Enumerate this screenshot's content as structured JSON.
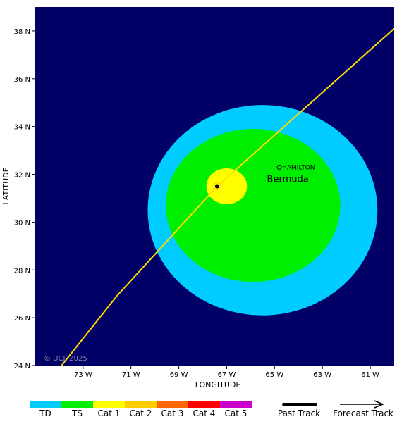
{
  "map": {
    "background_color": "#000066",
    "x_axis_label": "LONGITUDE",
    "y_axis_label": "LATITUDE",
    "lon_range": [
      -75,
      -60
    ],
    "lat_range": [
      24,
      39
    ],
    "lon_ticks": [
      {
        "value": -73,
        "label": "73 W"
      },
      {
        "value": -71,
        "label": "71 W"
      },
      {
        "value": -69,
        "label": "69 W"
      },
      {
        "value": -67,
        "label": "67 W"
      },
      {
        "value": -65,
        "label": "65 W"
      },
      {
        "value": -63,
        "label": "63 W"
      },
      {
        "value": -61,
        "label": "61 W"
      }
    ],
    "lat_ticks": [
      {
        "value": 24,
        "label": "24 N"
      },
      {
        "value": 26,
        "label": "26 N"
      },
      {
        "value": 28,
        "label": "28 N"
      },
      {
        "value": 30,
        "label": "30 N"
      },
      {
        "value": 32,
        "label": "32 N"
      },
      {
        "value": 34,
        "label": "34 N"
      },
      {
        "value": 36,
        "label": "36 N"
      },
      {
        "value": 38,
        "label": "38 N"
      }
    ],
    "wind_fields": [
      {
        "category": "TD",
        "color": "#00ccff",
        "center_lon": -65.5,
        "center_lat": 30.5,
        "radius_lon": 4.8,
        "radius_lat": 4.4
      },
      {
        "category": "TS",
        "color": "#00ee00",
        "center_lon": -65.9,
        "center_lat": 30.7,
        "radius_lon": 3.65,
        "radius_lat": 3.2
      },
      {
        "category": "Cat 1",
        "color": "#ffff00",
        "center_lon": -67.0,
        "center_lat": 31.5,
        "radius_lon": 0.85,
        "radius_lat": 0.75
      }
    ],
    "storm_center": {
      "lon": -67.4,
      "lat": 31.5
    },
    "track": {
      "color": "#ffdd00",
      "points": [
        {
          "lon": -73.9,
          "lat": 24.0
        },
        {
          "lon": -71.6,
          "lat": 26.9
        },
        {
          "lon": -67.4,
          "lat": 31.5
        },
        {
          "lon": -60.0,
          "lat": 38.1
        }
      ]
    },
    "places": [
      {
        "name": "HAMILTON",
        "lon": -64.8,
        "lat": 32.3
      }
    ],
    "region_labels": [
      {
        "name": "Bermuda",
        "lon": -64.8,
        "lat": 31.8
      }
    ],
    "credit": "© UCL 2025"
  },
  "legend": {
    "categories": [
      {
        "label": "TD",
        "color": "#00ccff"
      },
      {
        "label": "TS",
        "color": "#00ee00"
      },
      {
        "label": "Cat 1",
        "color": "#ffff00"
      },
      {
        "label": "Cat 2",
        "color": "#ffcc00"
      },
      {
        "label": "Cat 3",
        "color": "#ff6600"
      },
      {
        "label": "Cat 4",
        "color": "#ff0000"
      },
      {
        "label": "Cat 5",
        "color": "#cc00cc"
      }
    ],
    "past_track_label": "Past Track",
    "forecast_track_label": "Forecast Track"
  }
}
